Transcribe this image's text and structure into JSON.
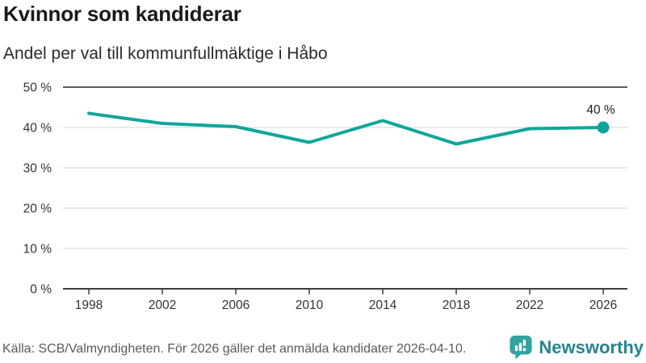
{
  "chart_data": {
    "type": "line",
    "title": "Kvinnor som kandiderar",
    "subtitle": "Andel per val till kommunfullmäktige i Håbo",
    "categories": [
      "1998",
      "2002",
      "2006",
      "2010",
      "2014",
      "2018",
      "2022",
      "2026"
    ],
    "values": [
      43.5,
      41.0,
      40.2,
      36.3,
      41.7,
      35.9,
      39.7,
      40.0
    ],
    "unit": "%",
    "ylim": [
      0,
      50
    ],
    "y_ticks": [
      {
        "value": 0,
        "label": "0 %"
      },
      {
        "value": 10,
        "label": "10 %"
      },
      {
        "value": 20,
        "label": "20 %"
      },
      {
        "value": 30,
        "label": "30 %"
      },
      {
        "value": 40,
        "label": "40 %"
      },
      {
        "value": 50,
        "label": "50 %"
      }
    ],
    "end_label": "40 %",
    "grid": true,
    "legend": "none",
    "colors": {
      "line": "#10a69b",
      "marker": "#10a69b",
      "gridline": "#dcdcdc",
      "top_gridline": "#5f5f5f",
      "axis": "#3d3d3d",
      "tick_label": "#333333",
      "end_label": "#222222"
    }
  },
  "footer": {
    "source": "Källa: SCB/Valmyndigheten. För 2026 gäller det anmälda kandidater 2026-04-10.",
    "brand": "Newsworthy",
    "brand_text_color": "#27858e",
    "logo_color": "#2fa49e",
    "logo_icon": "newsworthy-speech-bubble-bar-chart"
  }
}
